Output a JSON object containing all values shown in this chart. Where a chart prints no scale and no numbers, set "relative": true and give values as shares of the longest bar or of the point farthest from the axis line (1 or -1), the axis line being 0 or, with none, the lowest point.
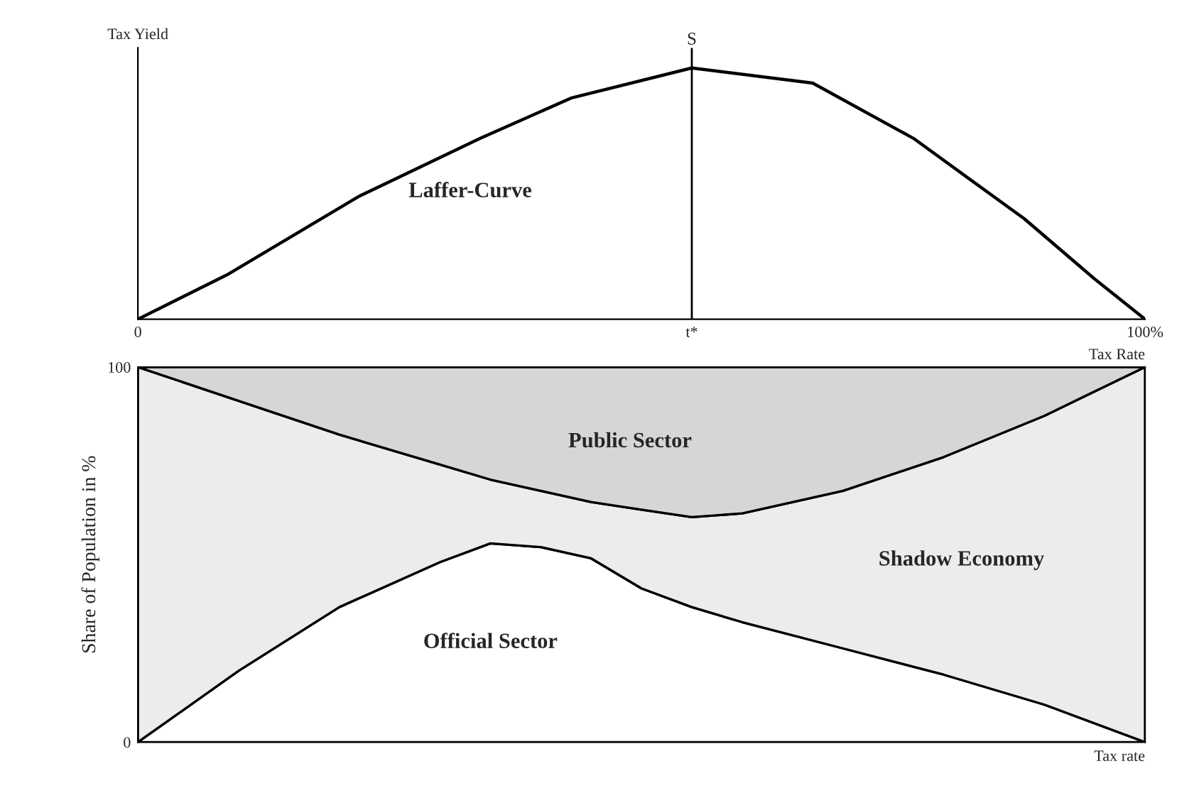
{
  "chart_data": [
    {
      "type": "line",
      "relative": true,
      "ylabel": "Tax Yield",
      "xlabel": "Tax Rate",
      "xlim": [
        0,
        100
      ],
      "xticks": [
        0,
        {
          "value": 55,
          "label": "t*"
        },
        {
          "value": 100,
          "label": "100%"
        }
      ],
      "series": [
        {
          "color": "#000000",
          "x": [
            0,
            9,
            22,
            34,
            43,
            55,
            67,
            77,
            88,
            95,
            100
          ],
          "values": [
            0,
            0.18,
            0.49,
            0.72,
            0.88,
            1,
            0.94,
            0.72,
            0.4,
            0.16,
            0
          ]
        }
      ],
      "ref_lines": [
        {
          "axis": "x",
          "value": 55,
          "color": "#000000"
        }
      ],
      "annotations": [
        {
          "text": "S",
          "x": 55,
          "y": 1
        },
        "Laffer-Curve"
      ],
      "grid": false,
      "legend": false
    },
    {
      "type": "area",
      "stacked": true,
      "ylabel": "Share of Population in %",
      "xlabel": "Tax rate",
      "xlim": [
        0,
        100
      ],
      "ylim": [
        0,
        100
      ],
      "tick_labels": "y",
      "yticks": [
        0,
        100
      ],
      "x": [
        0,
        10,
        20,
        30,
        35,
        40,
        45,
        50,
        55,
        60,
        70,
        80,
        90,
        100
      ],
      "series": [
        {
          "name": "Official Sector",
          "color": "#ffffff",
          "values": [
            0,
            19,
            36,
            48,
            53,
            52,
            49,
            41,
            36,
            32,
            25,
            18,
            10,
            0
          ]
        },
        {
          "name": "Shadow Economy",
          "color": "#ececec",
          "values": [
            100,
            72,
            46,
            26,
            17,
            15,
            15,
            21,
            24,
            29,
            42,
            58,
            77,
            100
          ]
        },
        {
          "name": "Public Sector",
          "color": "#d6d6d6",
          "values": [
            0,
            9,
            18,
            26,
            30,
            33,
            36,
            38,
            40,
            39,
            33,
            24,
            13,
            0
          ]
        }
      ],
      "grid": false,
      "legend": false
    }
  ]
}
